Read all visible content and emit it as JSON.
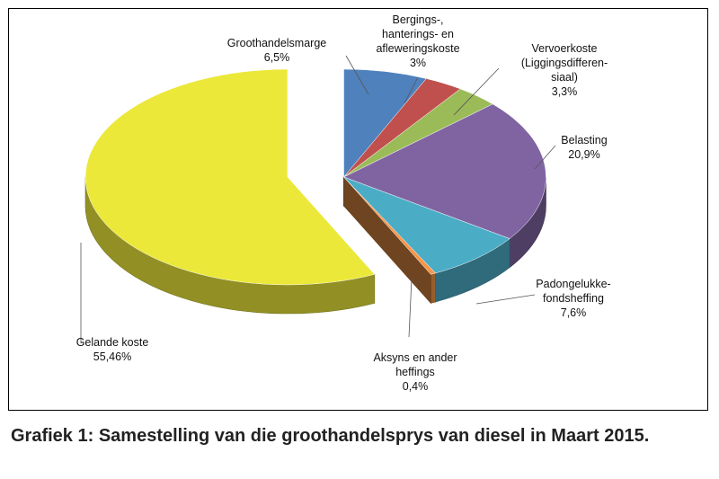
{
  "caption": "Grafiek 1: Samestelling van die groothandelsprys van diesel in Maart 2015.",
  "chart_data": {
    "type": "pie",
    "title": "",
    "slices": [
      {
        "name": "Groothandelsmarge",
        "label": [
          "Groothandelsmarge",
          "6,5%"
        ],
        "value": 6.5,
        "color": "#4f81bd"
      },
      {
        "name": "Bergings-, hanterings- en afleweringskoste",
        "label": [
          "Bergings-,",
          "hanterings- en",
          "afleweringskoste",
          "3%"
        ],
        "value": 3.0,
        "color": "#c0504d"
      },
      {
        "name": "Vervoerkoste (Liggingsdifferensiaal)",
        "label": [
          "Vervoerkoste",
          "(Liggingsdifferen-",
          "siaal)",
          "3,3%"
        ],
        "value": 3.3,
        "color": "#9bbb59"
      },
      {
        "name": "Belasting",
        "label": [
          "Belasting",
          "20,9%"
        ],
        "value": 20.9,
        "color": "#8064a2"
      },
      {
        "name": "Padongelukkefondsheffing",
        "label": [
          "Padongelukke-",
          "fondsheffing",
          "7,6%"
        ],
        "value": 7.6,
        "color": "#4bacc6"
      },
      {
        "name": "Aksyns en ander heffings",
        "label": [
          "Aksyns en ander",
          "heffings",
          "0,4%"
        ],
        "value": 0.4,
        "color": "#f79646"
      },
      {
        "name": "Gelande koste",
        "label": [
          "Gelande koste",
          "55,46%"
        ],
        "value": 55.46,
        "color": "#ebe83a"
      }
    ]
  }
}
